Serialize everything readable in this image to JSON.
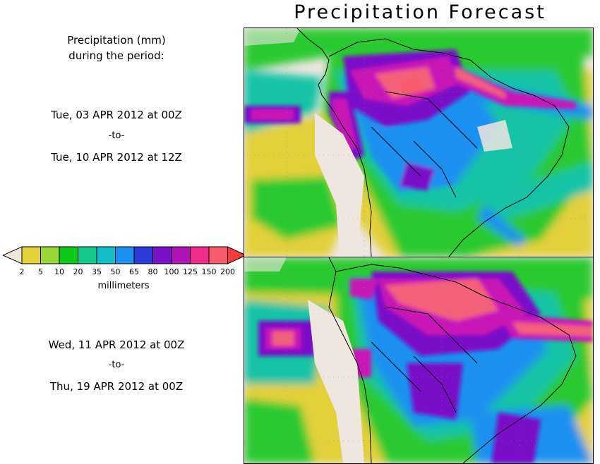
{
  "title": "Precipitation Forecast",
  "description": {
    "line1": "Precipitation (mm)",
    "line2": "during the period:"
  },
  "periods": [
    {
      "start": "Tue, 03 APR 2012 at 00Z",
      "separator": "-to-",
      "end": "Tue, 10 APR 2012 at 12Z"
    },
    {
      "start": "Wed, 11 APR 2012 at 00Z",
      "separator": "-to-",
      "end": "Thu, 19 APR 2012 at 00Z"
    }
  ],
  "legend": {
    "units": "millimeters",
    "ticks": [
      "2",
      "5",
      "10",
      "20",
      "35",
      "50",
      "65",
      "80",
      "100",
      "125",
      "150",
      "200"
    ],
    "colors": {
      "below": "#f0e6dc",
      "bins": [
        "#e3d03a",
        "#9bd53c",
        "#10c81a",
        "#14c78a",
        "#13bdc9",
        "#1e90f0",
        "#2c3ad6",
        "#7a10c8",
        "#b012b8",
        "#ee2e8a",
        "#f65c6c"
      ],
      "above": "#f83c3c"
    }
  },
  "map_colors": {
    "land": "#efe6e0",
    "ocean_dry": "#efe6e0",
    "light": "#e3d03a",
    "green": "#2cc930",
    "teal": "#17c3a6",
    "blue": "#1e90f0",
    "purple": "#7a10c8",
    "magenta": "#c916b6",
    "pink": "#f4607a",
    "coast": "#000000"
  }
}
